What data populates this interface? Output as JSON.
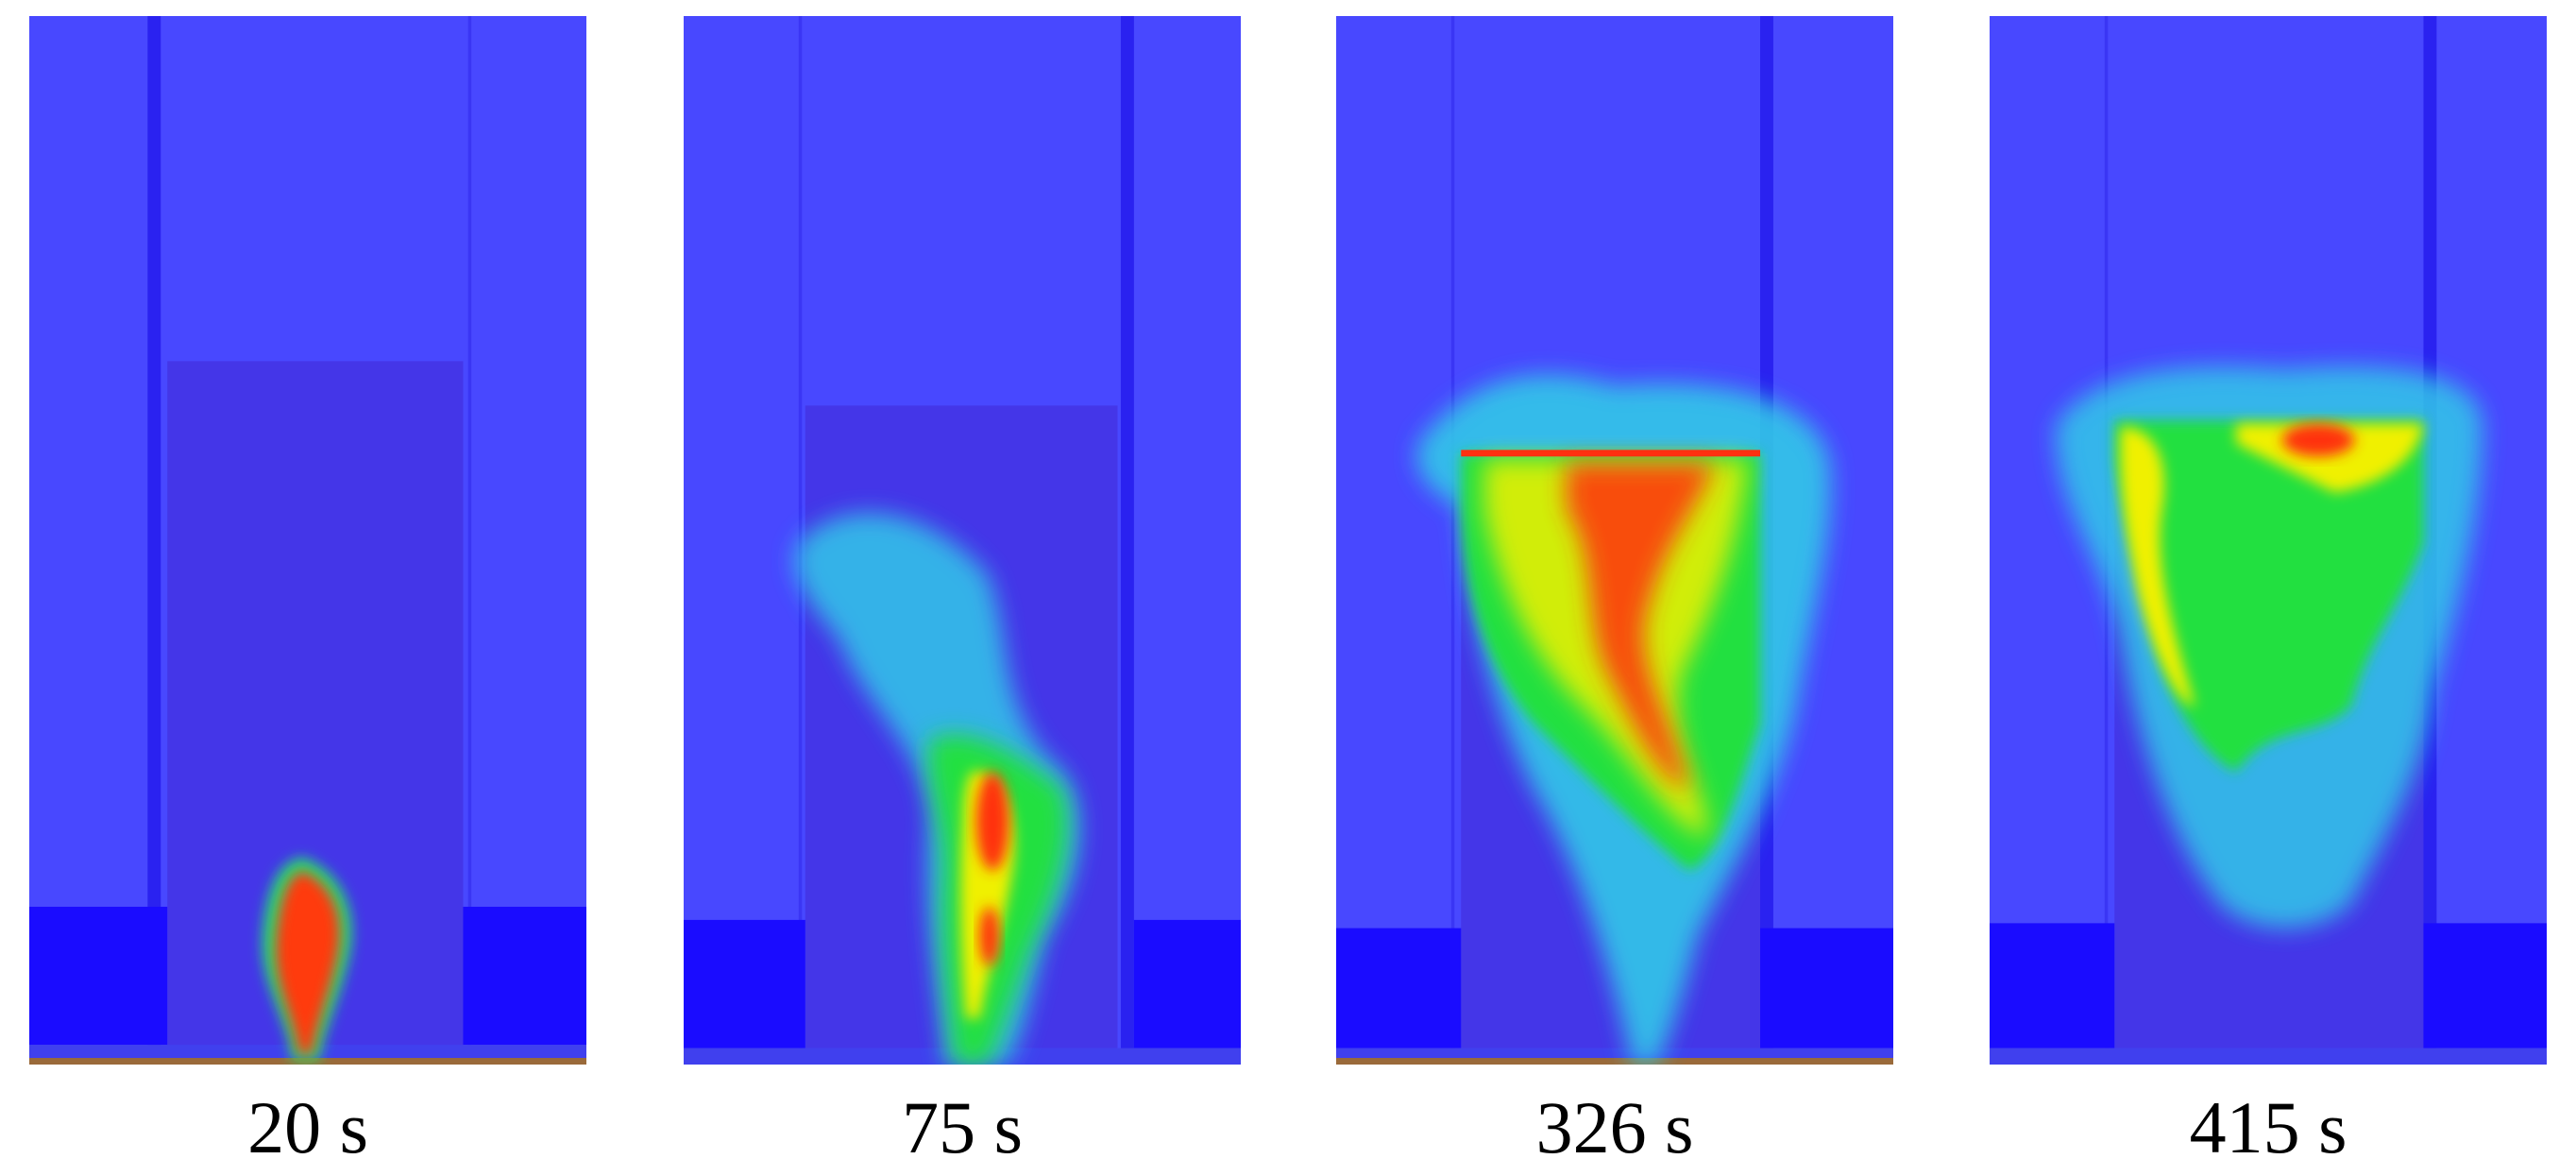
{
  "panels": [
    {
      "label": "20 s"
    },
    {
      "label": "75 s"
    },
    {
      "label": "326 s"
    },
    {
      "label": "415 s"
    }
  ]
}
